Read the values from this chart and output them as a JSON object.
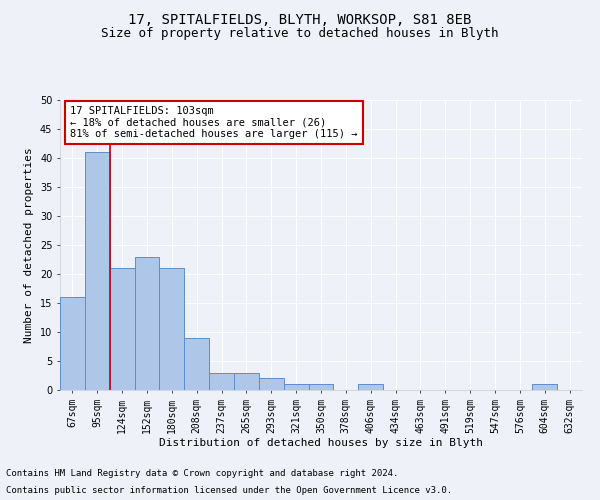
{
  "title": "17, SPITALFIELDS, BLYTH, WORKSOP, S81 8EB",
  "subtitle": "Size of property relative to detached houses in Blyth",
  "xlabel": "Distribution of detached houses by size in Blyth",
  "ylabel": "Number of detached properties",
  "categories": [
    "67sqm",
    "95sqm",
    "124sqm",
    "152sqm",
    "180sqm",
    "208sqm",
    "237sqm",
    "265sqm",
    "293sqm",
    "321sqm",
    "350sqm",
    "378sqm",
    "406sqm",
    "434sqm",
    "463sqm",
    "491sqm",
    "519sqm",
    "547sqm",
    "576sqm",
    "604sqm",
    "632sqm"
  ],
  "values": [
    16,
    41,
    21,
    23,
    21,
    9,
    3,
    3,
    2,
    1,
    1,
    0,
    1,
    0,
    0,
    0,
    0,
    0,
    0,
    1,
    0
  ],
  "bar_color": "#aec6e8",
  "bar_edge_color": "#5b8fc9",
  "ylim": [
    0,
    50
  ],
  "yticks": [
    0,
    5,
    10,
    15,
    20,
    25,
    30,
    35,
    40,
    45,
    50
  ],
  "annotation_box_title": "17 SPITALFIELDS: 103sqm",
  "annotation_line1": "← 18% of detached houses are smaller (26)",
  "annotation_line2": "81% of semi-detached houses are larger (115) →",
  "annotation_box_color": "#ffffff",
  "annotation_box_edge": "#cc0000",
  "redline_x": 1.5,
  "footer1": "Contains HM Land Registry data © Crown copyright and database right 2024.",
  "footer2": "Contains public sector information licensed under the Open Government Licence v3.0.",
  "background_color": "#eef2f8",
  "grid_color": "#ffffff",
  "title_fontsize": 10,
  "subtitle_fontsize": 9,
  "axis_label_fontsize": 8,
  "tick_fontsize": 7,
  "footer_fontsize": 6.5,
  "annotation_fontsize": 7.5
}
